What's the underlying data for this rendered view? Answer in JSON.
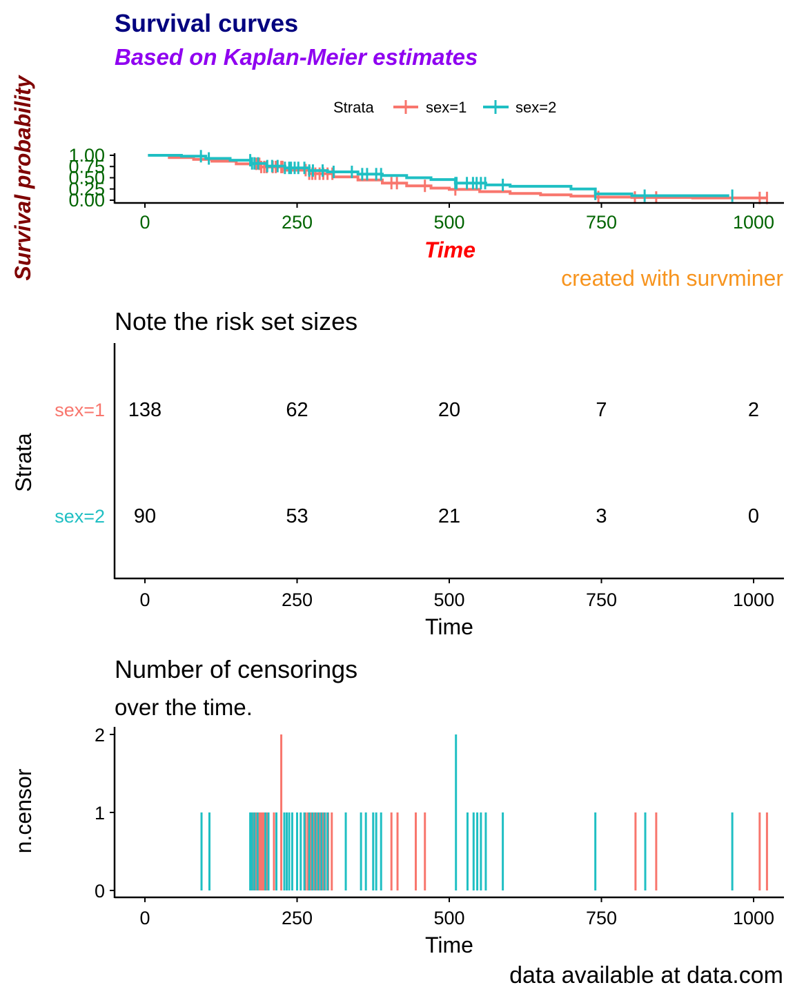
{
  "colors": {
    "sex1": "#F8766D",
    "sex2": "#1FBFC3",
    "title": "#00007F",
    "subtitle": "#8F00F0",
    "ylab_km": "#7F0000",
    "xlab_km": "#FF0000",
    "ticks_km": "#006400",
    "caption_km": "#F7941E",
    "text": "#000000"
  },
  "chart_data": [
    {
      "type": "line",
      "title": "Survival curves",
      "subtitle": "Based on Kaplan-Meier estimates",
      "xlabel": "Time",
      "ylabel": "Survival probability",
      "caption": "created with survminer",
      "xlim": [
        -50,
        1050
      ],
      "ylim": [
        0,
        1
      ],
      "xticks": [
        "0",
        "250",
        "500",
        "750",
        "1000"
      ],
      "yticks": [
        "0.00",
        "0.25",
        "0.50",
        "0.75",
        "1.00"
      ],
      "legend": {
        "title": "Strata",
        "position": "top",
        "entries": [
          "sex=1",
          "sex=2"
        ]
      },
      "grid": false,
      "series": [
        {
          "name": "sex=1",
          "x": [
            5,
            40,
            80,
            110,
            150,
            190,
            230,
            270,
            310,
            350,
            390,
            430,
            470,
            500,
            550,
            600,
            650,
            700,
            740,
            800,
            900,
            1022
          ],
          "y": [
            1.0,
            0.95,
            0.91,
            0.87,
            0.81,
            0.74,
            0.67,
            0.59,
            0.52,
            0.45,
            0.38,
            0.32,
            0.27,
            0.24,
            0.19,
            0.15,
            0.12,
            0.09,
            0.07,
            0.06,
            0.05,
            0.05
          ],
          "censor_x": [
            183,
            188,
            191,
            196,
            200,
            210,
            215,
            224,
            226,
            264,
            270,
            275,
            280,
            287,
            293,
            300,
            308,
            405,
            414,
            460,
            510,
            745,
            805,
            840,
            1010,
            1022
          ]
        },
        {
          "name": "sex=2",
          "x": [
            5,
            60,
            100,
            140,
            175,
            200,
            230,
            270,
            300,
            350,
            390,
            430,
            470,
            510,
            560,
            600,
            650,
            700,
            740,
            800,
            960
          ],
          "y": [
            1.0,
            0.98,
            0.93,
            0.89,
            0.82,
            0.76,
            0.72,
            0.66,
            0.63,
            0.58,
            0.55,
            0.5,
            0.46,
            0.38,
            0.34,
            0.31,
            0.31,
            0.25,
            0.14,
            0.1,
            0.1
          ],
          "censor_x": [
            92,
            105,
            173,
            176,
            180,
            186,
            201,
            209,
            218,
            230,
            237,
            240,
            246,
            252,
            262,
            270,
            276,
            292,
            310,
            340,
            357,
            365,
            380,
            388,
            510,
            512,
            529,
            539,
            545,
            552,
            559,
            588,
            740,
            821,
            965
          ]
        }
      ]
    },
    {
      "type": "table",
      "title": "Note the risk set sizes",
      "xlabel": "Time",
      "ylabel": "Strata",
      "xlim": [
        -50,
        1050
      ],
      "xticks": [
        "0",
        "250",
        "500",
        "750",
        "1000"
      ],
      "times": [
        0,
        250,
        500,
        750,
        1000
      ],
      "rows": [
        {
          "name": "sex=1",
          "values": [
            "138",
            "62",
            "20",
            "7",
            "2"
          ]
        },
        {
          "name": "sex=2",
          "values": [
            "90",
            "53",
            "21",
            "3",
            "0"
          ]
        }
      ]
    },
    {
      "type": "bar",
      "title": "Number of censorings",
      "subtitle": "over the time.",
      "xlabel": "Time",
      "ylabel": "n.censor",
      "caption": "data available at data.com",
      "xlim": [
        -50,
        1050
      ],
      "ylim": [
        0,
        2
      ],
      "xticks": [
        "0",
        "250",
        "500",
        "750",
        "1000"
      ],
      "yticks": [
        "0",
        "1",
        "2"
      ],
      "series": [
        {
          "name": "sex=1",
          "x": [
            175,
            178,
            182,
            186,
            188,
            191,
            194,
            197,
            200,
            212,
            224,
            264,
            268,
            273,
            277,
            282,
            287,
            292,
            296,
            301,
            307,
            405,
            415,
            445,
            460,
            806,
            840,
            1010,
            1022
          ],
          "values": [
            1,
            1,
            1,
            1,
            1,
            1,
            1,
            1,
            1,
            1,
            2,
            1,
            1,
            1,
            1,
            1,
            1,
            1,
            1,
            1,
            1,
            1,
            1,
            1,
            1,
            1,
            1,
            1,
            1
          ]
        },
        {
          "name": "sex=2",
          "x": [
            93,
            106,
            173,
            176,
            180,
            185,
            198,
            203,
            216,
            229,
            233,
            237,
            242,
            250,
            256,
            262,
            270,
            275,
            280,
            285,
            290,
            295,
            300,
            330,
            355,
            363,
            375,
            380,
            388,
            511,
            530,
            540,
            546,
            552,
            560,
            588,
            740,
            822,
            965
          ],
          "values": [
            1,
            1,
            1,
            1,
            1,
            1,
            1,
            1,
            1,
            1,
            1,
            1,
            1,
            1,
            1,
            1,
            1,
            1,
            1,
            1,
            1,
            1,
            1,
            1,
            1,
            1,
            1,
            1,
            1,
            2,
            1,
            1,
            1,
            1,
            1,
            1,
            1,
            1,
            1
          ]
        }
      ]
    }
  ]
}
